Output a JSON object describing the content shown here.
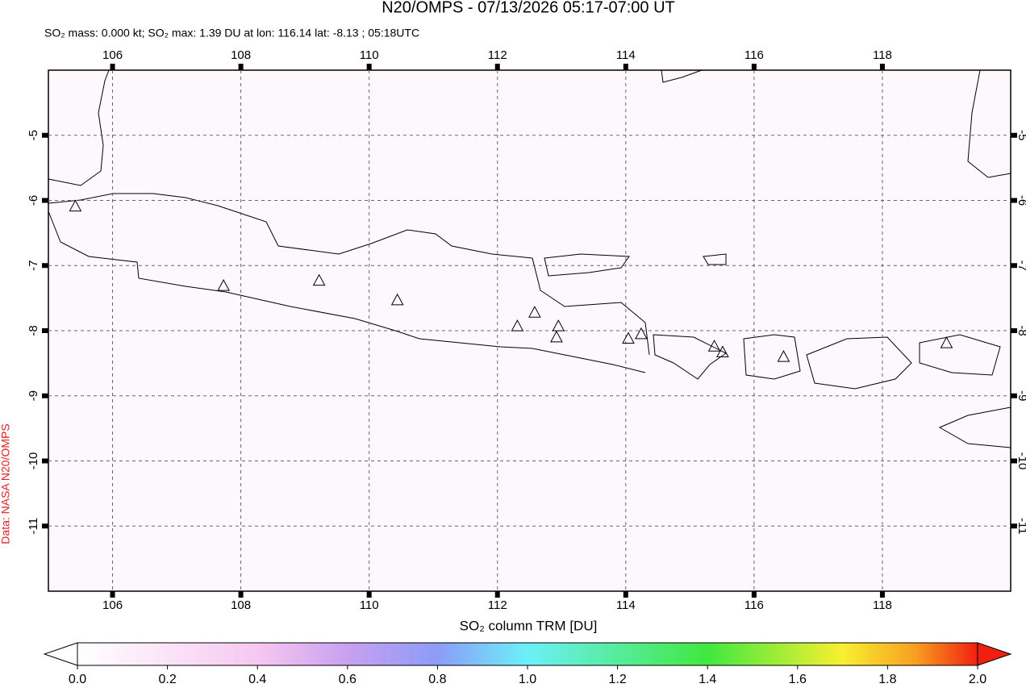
{
  "header": {
    "title": "N20/OMPS - 07/13/2026 05:17-07:00 UT",
    "subtitle": "SO₂ mass: 0.000 kt; SO₂ max: 1.39 DU at lon: 116.14 lat: -8.13 ; 05:18UTC",
    "credit": "Data: NASA N20/OMPS"
  },
  "map": {
    "xlim": [
      105,
      120
    ],
    "ylim": [
      -4,
      -12
    ],
    "xticks": [
      106,
      108,
      110,
      112,
      114,
      116,
      118
    ],
    "yticks": [
      -5,
      -6,
      -7,
      -8,
      -9,
      -10,
      -11
    ],
    "volcanoes": [
      {
        "lon": 105.42,
        "lat": -6.1
      },
      {
        "lon": 107.73,
        "lat": -7.32
      },
      {
        "lon": 109.22,
        "lat": -7.24
      },
      {
        "lon": 110.44,
        "lat": -7.54
      },
      {
        "lon": 112.31,
        "lat": -7.94
      },
      {
        "lon": 112.58,
        "lat": -7.73
      },
      {
        "lon": 112.95,
        "lat": -7.94
      },
      {
        "lon": 112.92,
        "lat": -8.11
      },
      {
        "lon": 114.04,
        "lat": -8.13
      },
      {
        "lon": 114.24,
        "lat": -8.06
      },
      {
        "lon": 115.38,
        "lat": -8.25
      },
      {
        "lon": 115.51,
        "lat": -8.34
      },
      {
        "lon": 116.46,
        "lat": -8.41
      },
      {
        "lon": 119.0,
        "lat": -8.2
      }
    ]
  },
  "colorbar": {
    "label": "SO₂ column TRM [DU]",
    "lim": [
      0,
      2
    ],
    "ticks": [
      {
        "value": 0,
        "label": "0.0"
      },
      {
        "value": 0.2,
        "label": "0.2"
      },
      {
        "value": 0.4,
        "label": "0.4"
      },
      {
        "value": 0.6,
        "label": "0.6"
      },
      {
        "value": 0.8,
        "label": "0.8"
      },
      {
        "value": 1,
        "label": "1.0"
      },
      {
        "value": 1.2,
        "label": "1.2"
      },
      {
        "value": 1.4,
        "label": "1.4"
      },
      {
        "value": 1.6,
        "label": "1.6"
      },
      {
        "value": 1.8,
        "label": "1.8"
      },
      {
        "value": 2,
        "label": "2.0"
      }
    ]
  }
}
